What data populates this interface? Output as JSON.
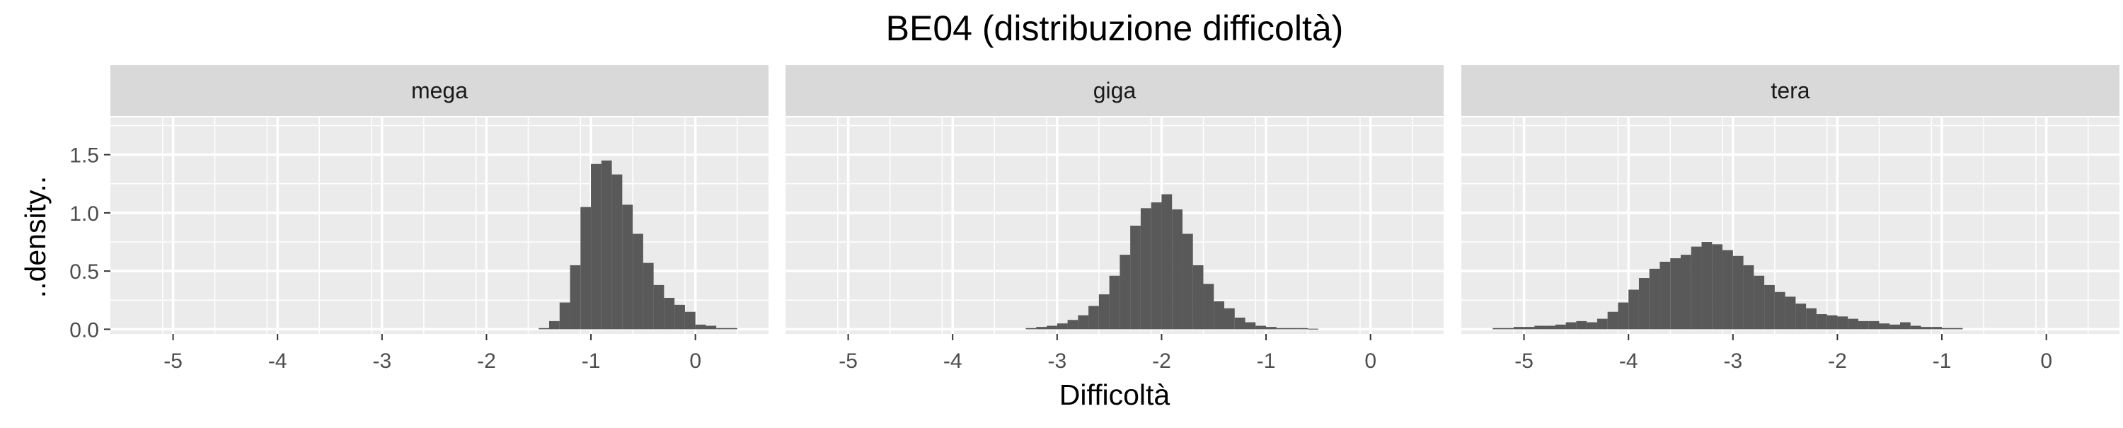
{
  "chart_data": {
    "type": "bar",
    "title": "BE04 (distribuzione difficoltà)",
    "xlabel": "Difficoltà",
    "ylabel": "..density..",
    "xlim": [
      -5.6,
      0.7
    ],
    "ylim": [
      -0.04,
      1.82
    ],
    "x_ticks": [
      -5,
      -4,
      -3,
      -2,
      -1,
      0
    ],
    "y_ticks": [
      0.0,
      0.5,
      1.0,
      1.5
    ],
    "y_tick_labels": [
      "0.0",
      "0.5",
      "1.0",
      "1.5"
    ],
    "grid": true,
    "bin_width": 0.1,
    "colors": {
      "bar": "#595959",
      "panel_bg": "#ebebeb",
      "strip_bg": "#d9d9d9",
      "grid": "#ffffff",
      "text": "#4d4d4d",
      "title": "#000000"
    },
    "panels": [
      {
        "name": "mega",
        "bins": [
          [
            -1.45,
            0.01
          ],
          [
            -1.35,
            0.07
          ],
          [
            -1.25,
            0.23
          ],
          [
            -1.15,
            0.55
          ],
          [
            -1.05,
            1.05
          ],
          [
            -0.95,
            1.42
          ],
          [
            -0.85,
            1.45
          ],
          [
            -0.75,
            1.33
          ],
          [
            -0.65,
            1.07
          ],
          [
            -0.55,
            0.82
          ],
          [
            -0.45,
            0.57
          ],
          [
            -0.35,
            0.38
          ],
          [
            -0.25,
            0.27
          ],
          [
            -0.15,
            0.21
          ],
          [
            -0.05,
            0.15
          ],
          [
            0.05,
            0.04
          ],
          [
            0.15,
            0.03
          ],
          [
            0.25,
            0.01
          ],
          [
            0.35,
            0.01
          ]
        ]
      },
      {
        "name": "giga",
        "bins": [
          [
            -3.25,
            0.01
          ],
          [
            -3.15,
            0.02
          ],
          [
            -3.05,
            0.03
          ],
          [
            -2.95,
            0.05
          ],
          [
            -2.85,
            0.08
          ],
          [
            -2.75,
            0.12
          ],
          [
            -2.65,
            0.2
          ],
          [
            -2.55,
            0.3
          ],
          [
            -2.45,
            0.46
          ],
          [
            -2.35,
            0.64
          ],
          [
            -2.25,
            0.89
          ],
          [
            -2.15,
            1.04
          ],
          [
            -2.05,
            1.09
          ],
          [
            -1.95,
            1.16
          ],
          [
            -1.85,
            1.03
          ],
          [
            -1.75,
            0.82
          ],
          [
            -1.65,
            0.55
          ],
          [
            -1.55,
            0.39
          ],
          [
            -1.45,
            0.24
          ],
          [
            -1.35,
            0.18
          ],
          [
            -1.25,
            0.1
          ],
          [
            -1.15,
            0.06
          ],
          [
            -1.05,
            0.03
          ],
          [
            -0.95,
            0.02
          ],
          [
            -0.85,
            0.01
          ],
          [
            -0.75,
            0.01
          ],
          [
            -0.65,
            0.01
          ],
          [
            -0.55,
            0.005
          ]
        ]
      },
      {
        "name": "tera",
        "bins": [
          [
            -5.25,
            0.01
          ],
          [
            -5.15,
            0.01
          ],
          [
            -5.05,
            0.02
          ],
          [
            -4.95,
            0.02
          ],
          [
            -4.85,
            0.03
          ],
          [
            -4.75,
            0.03
          ],
          [
            -4.65,
            0.04
          ],
          [
            -4.55,
            0.06
          ],
          [
            -4.45,
            0.07
          ],
          [
            -4.35,
            0.06
          ],
          [
            -4.25,
            0.09
          ],
          [
            -4.15,
            0.15
          ],
          [
            -4.05,
            0.23
          ],
          [
            -3.95,
            0.34
          ],
          [
            -3.85,
            0.44
          ],
          [
            -3.75,
            0.52
          ],
          [
            -3.65,
            0.58
          ],
          [
            -3.55,
            0.61
          ],
          [
            -3.45,
            0.64
          ],
          [
            -3.35,
            0.71
          ],
          [
            -3.25,
            0.75
          ],
          [
            -3.15,
            0.73
          ],
          [
            -3.05,
            0.68
          ],
          [
            -2.95,
            0.63
          ],
          [
            -2.85,
            0.55
          ],
          [
            -2.75,
            0.46
          ],
          [
            -2.65,
            0.38
          ],
          [
            -2.55,
            0.32
          ],
          [
            -2.45,
            0.28
          ],
          [
            -2.35,
            0.22
          ],
          [
            -2.25,
            0.18
          ],
          [
            -2.15,
            0.13
          ],
          [
            -2.05,
            0.12
          ],
          [
            -1.95,
            0.11
          ],
          [
            -1.85,
            0.09
          ],
          [
            -1.75,
            0.07
          ],
          [
            -1.65,
            0.07
          ],
          [
            -1.55,
            0.05
          ],
          [
            -1.45,
            0.04
          ],
          [
            -1.35,
            0.06
          ],
          [
            -1.25,
            0.03
          ],
          [
            -1.15,
            0.02
          ],
          [
            -1.05,
            0.02
          ],
          [
            -0.95,
            0.01
          ],
          [
            -0.85,
            0.01
          ]
        ]
      }
    ]
  }
}
